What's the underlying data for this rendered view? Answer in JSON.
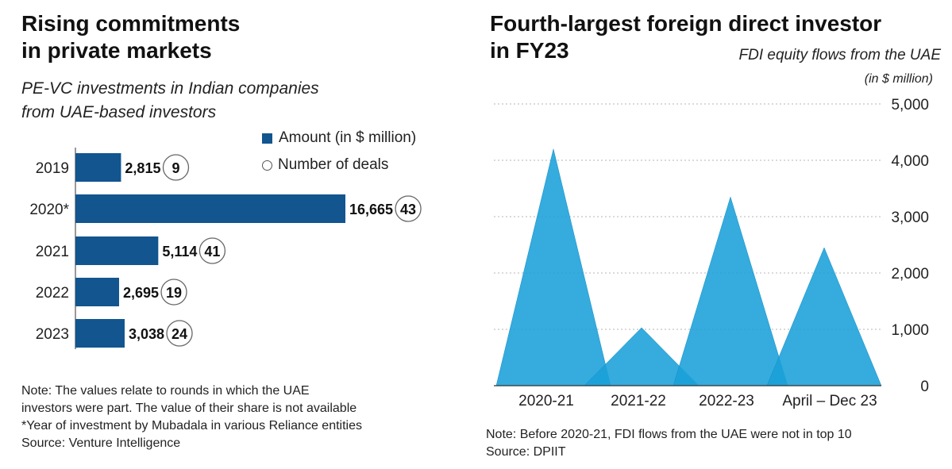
{
  "left": {
    "title_line1": "Rising commitments",
    "title_line2": "in private markets",
    "subtitle_line1": "PE-VC investments in Indian companies",
    "subtitle_line2": "from UAE-based investors",
    "legend_amount": "Amount (in $ million)",
    "legend_deals": "Number of deals",
    "note_line1": "Note: The values relate to rounds in which the UAE",
    "note_line2": "investors were part. The value of their share is not available",
    "note_line3": "*Year of investment by Mubadala in various Reliance entities",
    "source": "Source: Venture Intelligence"
  },
  "right": {
    "title_line1": "Fourth-largest foreign direct investor",
    "title_line2": "in FY23",
    "subtitle": "FDI equity flows from the UAE",
    "unit": "(in $ million)",
    "note_line1": "Note: Before 2020-21, FDI flows from the UAE were not in top 10",
    "source": "Source: DPIIT"
  },
  "colors": {
    "bar": "#12558f",
    "area": "#1a9fd8",
    "grid": "#b5b5b5"
  },
  "chart_data": [
    {
      "type": "bar",
      "orientation": "horizontal",
      "categories": [
        "2019",
        "2020*",
        "2021",
        "2022",
        "2023"
      ],
      "series": [
        {
          "name": "Amount (in $ million)",
          "values": [
            2815,
            16665,
            5114,
            2695,
            3038
          ]
        },
        {
          "name": "Number of deals",
          "values": [
            9,
            43,
            41,
            19,
            24
          ]
        }
      ],
      "value_labels": [
        "2,815",
        "16,665",
        "5,114",
        "2,695",
        "3,038"
      ],
      "deal_labels": [
        "9",
        "43",
        "41",
        "19",
        "24"
      ],
      "xlim": [
        0,
        16665
      ],
      "legend": "top-right",
      "grid": false
    },
    {
      "type": "area",
      "categories": [
        "2020-21",
        "2021-22",
        "2022-23",
        "April – Dec 23"
      ],
      "values": [
        4200,
        1030,
        3350,
        2450
      ],
      "ylim": [
        0,
        5000
      ],
      "yticks": [
        0,
        1000,
        2000,
        3000,
        4000,
        5000
      ],
      "ytick_labels": [
        "0",
        "1,000",
        "2,000",
        "3,000",
        "4,000",
        "5,000"
      ],
      "grid": true,
      "axis_side": "right"
    }
  ]
}
